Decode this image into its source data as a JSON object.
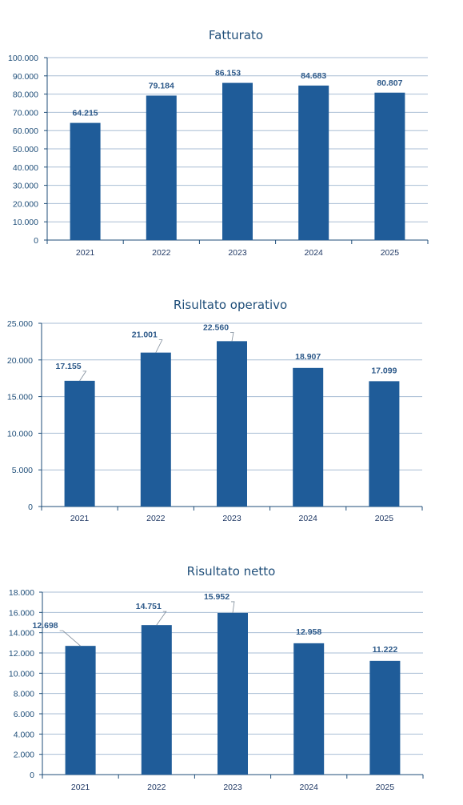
{
  "colors": {
    "bar": "#1f5c99",
    "grid": "#a9bed4",
    "axis": "#1f4e79"
  },
  "chart_data": [
    {
      "type": "bar",
      "title": "Fatturato",
      "categories": [
        "2021",
        "2022",
        "2023",
        "2024",
        "2025"
      ],
      "values": [
        64215,
        79184,
        86153,
        84683,
        80807
      ],
      "data_labels": [
        "64.215",
        "79.184",
        "86.153",
        "84.683",
        "80.807"
      ],
      "ylim": [
        0,
        100000
      ],
      "yticks": [
        0,
        10000,
        20000,
        30000,
        40000,
        50000,
        60000,
        70000,
        80000,
        90000,
        100000
      ],
      "ytick_labels": [
        "0",
        "10.000",
        "20.000",
        "30.000",
        "40.000",
        "50.000",
        "60.000",
        "70.000",
        "80.000",
        "90.000",
        "100.000"
      ],
      "grid": true,
      "legend": "none"
    },
    {
      "type": "bar",
      "title": "Risultato operativo",
      "categories": [
        "2021",
        "2022",
        "2023",
        "2024",
        "2025"
      ],
      "values": [
        17155,
        21001,
        22560,
        18907,
        17099
      ],
      "data_labels": [
        "17.155",
        "21.001",
        "22.560",
        "18.907",
        "17.099"
      ],
      "ylim": [
        0,
        25000
      ],
      "yticks": [
        0,
        5000,
        10000,
        15000,
        20000,
        25000
      ],
      "ytick_labels": [
        "0",
        "5.000",
        "10.000",
        "15.000",
        "20.000",
        "25.000"
      ],
      "grid": true,
      "legend": "none"
    },
    {
      "type": "bar",
      "title": "Risultato netto",
      "categories": [
        "2021",
        "2022",
        "2023",
        "2024",
        "2025"
      ],
      "values": [
        12698,
        14751,
        15952,
        12958,
        11222
      ],
      "data_labels": [
        "12.698",
        "14.751",
        "15.952",
        "12.958",
        "11.222"
      ],
      "ylim": [
        0,
        18000
      ],
      "yticks": [
        0,
        2000,
        4000,
        6000,
        8000,
        10000,
        12000,
        14000,
        16000,
        18000
      ],
      "ytick_labels": [
        "0",
        "2.000",
        "4.000",
        "6.000",
        "8.000",
        "10.000",
        "12.000",
        "14.000",
        "16.000",
        "18.000"
      ],
      "grid": true,
      "legend": "none"
    }
  ]
}
